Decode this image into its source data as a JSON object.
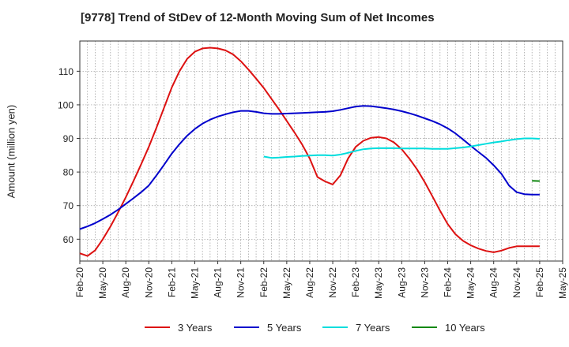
{
  "chart_data": {
    "type": "line",
    "title": "[9778]  Trend of StDev of 12-Month Moving Sum of Net Incomes",
    "ylabel": "Amount (million yen)",
    "xlabel": "",
    "x_ticks": [
      "Feb-20",
      "May-20",
      "Aug-20",
      "Nov-20",
      "Feb-21",
      "May-21",
      "Aug-21",
      "Nov-21",
      "Feb-22",
      "May-22",
      "Aug-22",
      "Nov-22",
      "Feb-23",
      "May-23",
      "Aug-23",
      "Nov-23",
      "Feb-24",
      "May-24",
      "Aug-24",
      "Nov-24",
      "Feb-25",
      "May-25"
    ],
    "y_ticks": [
      60,
      70,
      80,
      90,
      100,
      110
    ],
    "ylim": [
      53.5,
      119
    ],
    "xlim": [
      "2020-02",
      "2025-05"
    ],
    "grid": true,
    "legend_position": "bottom",
    "series": [
      {
        "name": "3 Years",
        "color": "#dd1111",
        "x": [
          "2020-02",
          "2020-03",
          "2020-04",
          "2020-05",
          "2020-06",
          "2020-07",
          "2020-08",
          "2020-09",
          "2020-10",
          "2020-11",
          "2020-12",
          "2021-01",
          "2021-02",
          "2021-03",
          "2021-04",
          "2021-05",
          "2021-06",
          "2021-07",
          "2021-08",
          "2021-09",
          "2021-10",
          "2021-11",
          "2021-12",
          "2022-01",
          "2022-02",
          "2022-03",
          "2022-04",
          "2022-05",
          "2022-06",
          "2022-07",
          "2022-08",
          "2022-09",
          "2022-10",
          "2022-11",
          "2022-12",
          "2023-01",
          "2023-02",
          "2023-03",
          "2023-04",
          "2023-05",
          "2023-06",
          "2023-07",
          "2023-08",
          "2023-09",
          "2023-10",
          "2023-11",
          "2023-12",
          "2024-01",
          "2024-02",
          "2024-03",
          "2024-04",
          "2024-05",
          "2024-06",
          "2024-07",
          "2024-08",
          "2024-09",
          "2024-10",
          "2024-11",
          "2024-12",
          "2025-01",
          "2025-02"
        ],
        "values": [
          55.8,
          55.0,
          56.7,
          60.0,
          63.8,
          68.0,
          72.5,
          77.3,
          82.3,
          87.5,
          93.2,
          99.2,
          105.2,
          110.0,
          113.7,
          115.8,
          116.8,
          117.0,
          116.8,
          116.2,
          115.0,
          113.0,
          110.5,
          107.8,
          105.0,
          101.8,
          98.6,
          95.2,
          91.8,
          88.2,
          84.0,
          78.5,
          77.2,
          76.3,
          79.0,
          84.0,
          87.5,
          89.3,
          90.2,
          90.4,
          90.0,
          88.8,
          86.8,
          84.0,
          80.8,
          77.0,
          72.8,
          68.5,
          64.5,
          61.5,
          59.5,
          58.2,
          57.2,
          56.5,
          56.1,
          56.6,
          57.4,
          57.9,
          57.9,
          57.9,
          57.9
        ]
      },
      {
        "name": "5 Years",
        "color": "#0000cc",
        "x": [
          "2020-02",
          "2020-03",
          "2020-04",
          "2020-05",
          "2020-06",
          "2020-07",
          "2020-08",
          "2020-09",
          "2020-10",
          "2020-11",
          "2020-12",
          "2021-01",
          "2021-02",
          "2021-03",
          "2021-04",
          "2021-05",
          "2021-06",
          "2021-07",
          "2021-08",
          "2021-09",
          "2021-10",
          "2021-11",
          "2021-12",
          "2022-01",
          "2022-02",
          "2022-03",
          "2022-04",
          "2022-05",
          "2022-06",
          "2022-07",
          "2022-08",
          "2022-09",
          "2022-10",
          "2022-11",
          "2022-12",
          "2023-01",
          "2023-02",
          "2023-03",
          "2023-04",
          "2023-05",
          "2023-06",
          "2023-07",
          "2023-08",
          "2023-09",
          "2023-10",
          "2023-11",
          "2023-12",
          "2024-01",
          "2024-02",
          "2024-03",
          "2024-04",
          "2024-05",
          "2024-06",
          "2024-07",
          "2024-08",
          "2024-09",
          "2024-10",
          "2024-11",
          "2024-12",
          "2025-01",
          "2025-02"
        ],
        "values": [
          63.0,
          63.8,
          64.8,
          66.0,
          67.3,
          68.8,
          70.5,
          72.2,
          74.0,
          76.0,
          79.0,
          82.2,
          85.5,
          88.3,
          90.8,
          92.8,
          94.4,
          95.6,
          96.5,
          97.2,
          97.8,
          98.2,
          98.2,
          97.9,
          97.5,
          97.3,
          97.3,
          97.4,
          97.5,
          97.6,
          97.7,
          97.8,
          97.9,
          98.1,
          98.5,
          99.0,
          99.5,
          99.7,
          99.6,
          99.3,
          99.0,
          98.6,
          98.1,
          97.5,
          96.8,
          96.0,
          95.2,
          94.2,
          93.0,
          91.5,
          89.7,
          87.8,
          86.0,
          84.2,
          82.0,
          79.5,
          76.0,
          74.0,
          73.4,
          73.3,
          73.3
        ]
      },
      {
        "name": "7 Years",
        "color": "#00dddd",
        "x": [
          "2022-02",
          "2022-03",
          "2022-04",
          "2022-05",
          "2022-06",
          "2022-07",
          "2022-08",
          "2022-09",
          "2022-10",
          "2022-11",
          "2022-12",
          "2023-01",
          "2023-02",
          "2023-03",
          "2023-04",
          "2023-05",
          "2023-06",
          "2023-07",
          "2023-08",
          "2023-09",
          "2023-10",
          "2023-11",
          "2023-12",
          "2024-01",
          "2024-02",
          "2024-03",
          "2024-04",
          "2024-05",
          "2024-06",
          "2024-07",
          "2024-08",
          "2024-09",
          "2024-10",
          "2024-11",
          "2024-12",
          "2025-01",
          "2025-02"
        ],
        "values": [
          84.6,
          84.2,
          84.3,
          84.5,
          84.6,
          84.8,
          84.9,
          85.0,
          85.0,
          84.9,
          85.2,
          85.7,
          86.3,
          86.8,
          87.0,
          87.1,
          87.1,
          87.1,
          87.0,
          87.0,
          87.0,
          87.0,
          86.9,
          86.9,
          86.9,
          87.1,
          87.3,
          87.6,
          88.0,
          88.4,
          88.8,
          89.1,
          89.5,
          89.8,
          90.0,
          90.0,
          89.9
        ]
      },
      {
        "name": "10 Years",
        "color": "#118811",
        "x": [
          "2025-01",
          "2025-02"
        ],
        "values": [
          77.4,
          77.3
        ]
      }
    ]
  }
}
